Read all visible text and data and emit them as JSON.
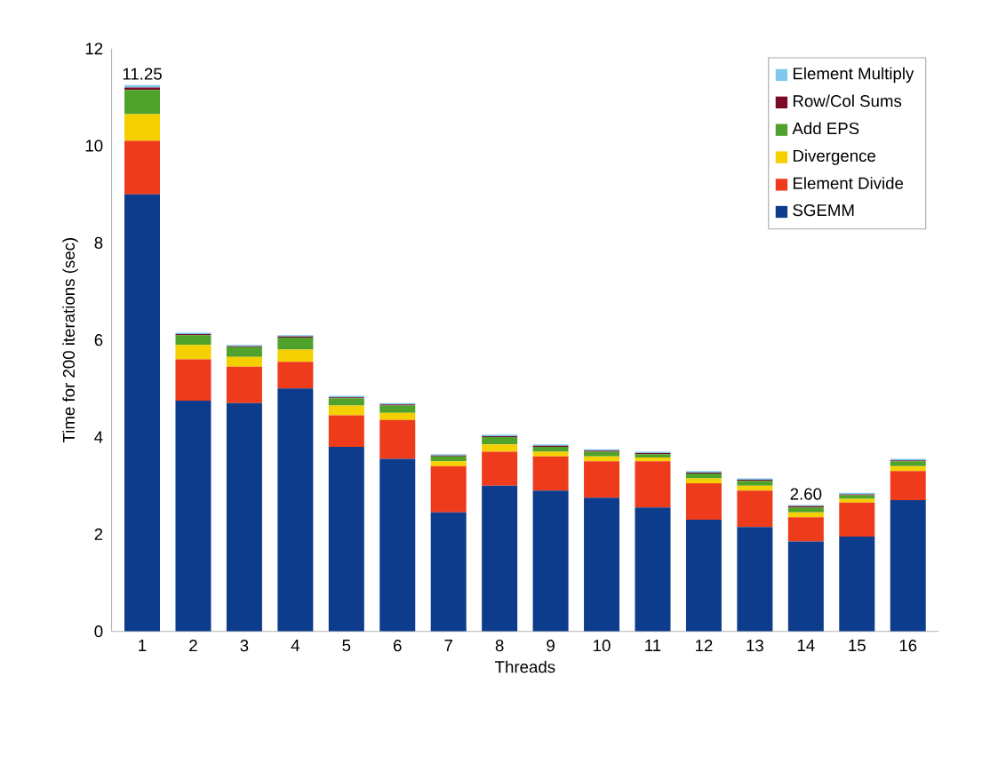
{
  "chart_data": {
    "type": "bar",
    "stacked": true,
    "xlabel": "Threads",
    "ylabel": "Time for 200 iterations (sec)",
    "categories": [
      "1",
      "2",
      "3",
      "4",
      "5",
      "6",
      "7",
      "8",
      "9",
      "10",
      "11",
      "12",
      "13",
      "14",
      "15",
      "16"
    ],
    "series": [
      {
        "name": "SGEMM",
        "color": "#0d3c8c",
        "values": [
          9.0,
          4.75,
          4.7,
          5.0,
          3.8,
          3.55,
          2.45,
          3.0,
          2.9,
          2.75,
          2.55,
          2.3,
          2.15,
          1.85,
          1.95,
          2.7
        ]
      },
      {
        "name": "Element Divide",
        "color": "#ee3b1c",
        "values": [
          1.1,
          0.85,
          0.75,
          0.55,
          0.65,
          0.8,
          0.95,
          0.7,
          0.7,
          0.75,
          0.95,
          0.75,
          0.75,
          0.5,
          0.7,
          0.6
        ]
      },
      {
        "name": "Divergence",
        "color": "#f5d000",
        "values": [
          0.55,
          0.3,
          0.2,
          0.25,
          0.2,
          0.15,
          0.1,
          0.15,
          0.1,
          0.1,
          0.08,
          0.1,
          0.1,
          0.1,
          0.08,
          0.1
        ]
      },
      {
        "name": "Add EPS",
        "color": "#4fa32c",
        "values": [
          0.5,
          0.2,
          0.2,
          0.25,
          0.15,
          0.15,
          0.1,
          0.15,
          0.1,
          0.1,
          0.07,
          0.1,
          0.1,
          0.1,
          0.07,
          0.1
        ]
      },
      {
        "name": "Row/Col Sums",
        "color": "#7a0a26",
        "values": [
          0.05,
          0.02,
          0.02,
          0.02,
          0.02,
          0.02,
          0.02,
          0.02,
          0.02,
          0.02,
          0.02,
          0.02,
          0.02,
          0.03,
          0.02,
          0.02
        ]
      },
      {
        "name": "Element Multiply",
        "color": "#7ec8ee",
        "values": [
          0.05,
          0.03,
          0.03,
          0.03,
          0.03,
          0.03,
          0.03,
          0.03,
          0.03,
          0.03,
          0.03,
          0.03,
          0.03,
          0.02,
          0.03,
          0.03
        ]
      }
    ],
    "totals": [
      "11.25",
      null,
      null,
      null,
      null,
      null,
      null,
      null,
      null,
      null,
      null,
      null,
      null,
      "2.60",
      null,
      null
    ],
    "ylim": [
      0,
      12
    ],
    "yticks": [
      0,
      2,
      4,
      6,
      8,
      10,
      12
    ],
    "grid": false,
    "legend": "top right"
  }
}
